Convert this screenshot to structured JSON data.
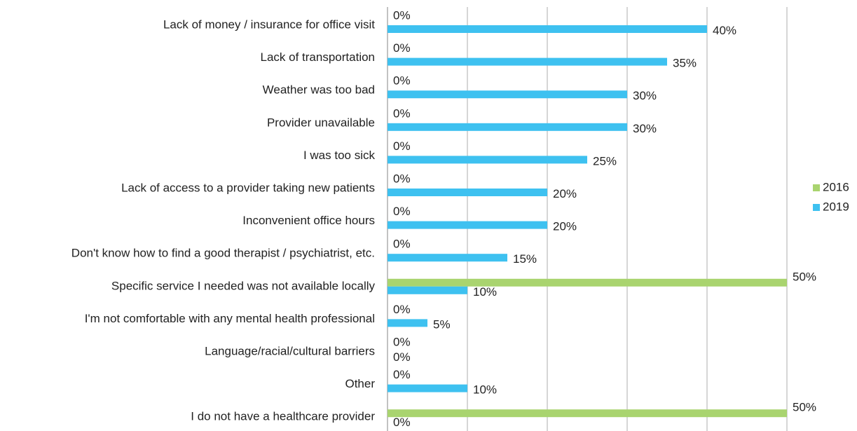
{
  "chart_data": {
    "type": "hbar",
    "categories": [
      "Lack of money / insurance for office visit",
      "Lack of transportation",
      "Weather was too bad",
      "Provider unavailable",
      "I was too sick",
      "Lack of access to a provider taking new patients",
      "Inconvenient office hours",
      "Don't know how to find a good therapist / psychiatrist, etc.",
      "Specific service I needed was not available locally",
      "I'm not comfortable with any mental health professional",
      "Language/racial/cultural barriers",
      "Other",
      "I do not have a healthcare provider"
    ],
    "series": [
      {
        "name": "2016",
        "color": "#a9d46f",
        "values": [
          0,
          0,
          0,
          0,
          0,
          0,
          0,
          0,
          50,
          0,
          0,
          0,
          50
        ],
        "value_labels": [
          "0%",
          "0%",
          "0%",
          "0%",
          "0%",
          "0%",
          "0%",
          "0%",
          "50%",
          "0%",
          "0%",
          "0%",
          "50%"
        ]
      },
      {
        "name": "2019",
        "color": "#3ec1f0",
        "values": [
          40,
          35,
          30,
          30,
          25,
          20,
          20,
          15,
          10,
          5,
          0,
          10,
          0
        ],
        "value_labels": [
          "40%",
          "35%",
          "30%",
          "30%",
          "25%",
          "20%",
          "20%",
          "15%",
          "10%",
          "5%",
          "0%",
          "10%",
          "0%"
        ]
      }
    ],
    "xlim": [
      0,
      50
    ],
    "xticks": [
      0,
      10,
      20,
      30,
      40,
      50
    ],
    "grid": true,
    "legend": "right"
  }
}
